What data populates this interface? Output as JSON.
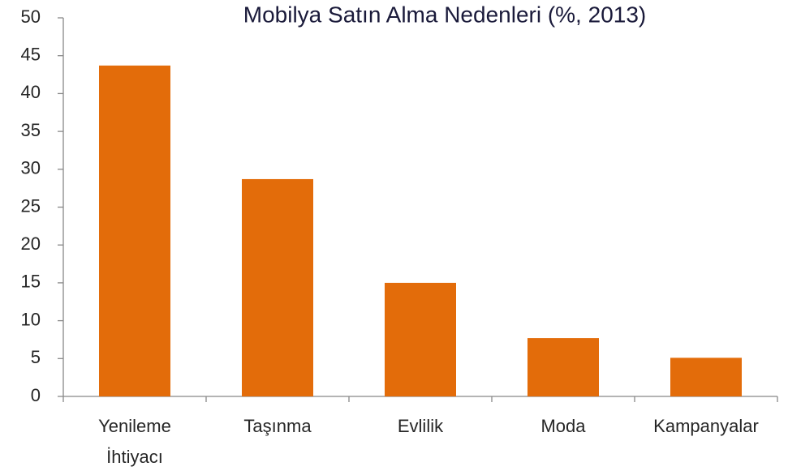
{
  "chart_data": {
    "type": "bar",
    "title": "Mobilya Satın Alma Nedenleri (%, 2013)",
    "categories": [
      "Yenileme İhtiyacı",
      "Taşınma",
      "Evlilik",
      "Moda",
      "Kampanyalar"
    ],
    "values": [
      43.7,
      28.7,
      15.0,
      7.7,
      5.1
    ],
    "color": "#e36c0a",
    "ylim": [
      0,
      50
    ],
    "yticks": [
      0,
      5,
      10,
      15,
      20,
      25,
      30,
      35,
      40,
      45,
      50
    ],
    "grid": false
  }
}
